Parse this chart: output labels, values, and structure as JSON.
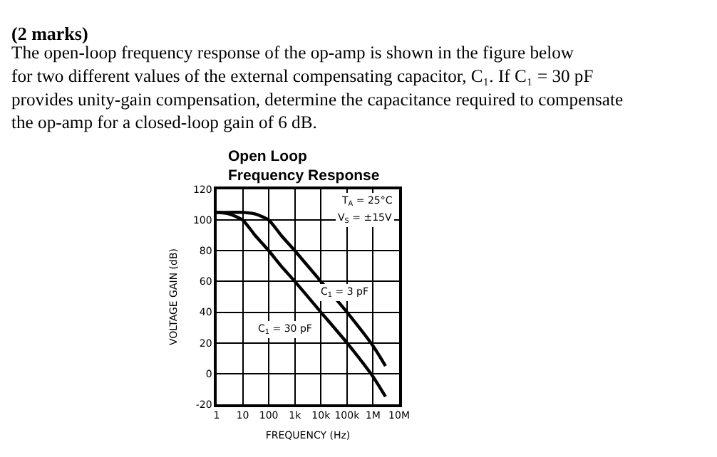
{
  "chart_data": {
    "type": "line",
    "title": "Open Loop\nFrequency Response",
    "xlabel": "FREQUENCY (Hz)",
    "ylabel": "VOLTAGE GAIN (dB)",
    "annotations": [
      "(2 marks)",
      "The open-loop frequency response of the op-amp is shown in the figure below\nfor two different values of the external compensating capacitor, C₁. If C₁ = 30 pF\nprovides unity-gain compensation, determine the capacitance required to compensate\nthe op-amp for a closed-loop gain of 6 dB.",
      "T$_{A}$ = 25°C",
      "V$_{S}$ = ±15V",
      "C$_{1}$ = 3 pF",
      "C$_{1}$ = 30 pF"
    ],
    "x": [
      1,
      3,
      10,
      30,
      100,
      300,
      1000,
      10000,
      100000,
      1000000,
      3000000
    ],
    "series": [
      {
        "color": "#000000",
        "values": [
          105,
          105,
          105,
          104,
          100,
          90,
          80,
          60,
          40,
          18,
          5
        ]
      },
      {
        "color": "#000000",
        "values": [
          105,
          104,
          100,
          90,
          80,
          70,
          60,
          40,
          20,
          -2,
          -15
        ]
      }
    ],
    "log": "x",
    "xlim": [
      1,
      10000000
    ],
    "ylim": [
      -20,
      120
    ],
    "xticks": [
      1,
      10,
      100,
      {
        "value": 1000,
        "label": "1k"
      },
      {
        "value": 10000,
        "label": "10k"
      },
      {
        "value": 100000,
        "label": "100k"
      },
      {
        "value": 1000000,
        "label": "1M"
      },
      {
        "value": 10000000,
        "label": "10M"
      }
    ],
    "yticks": [
      -20,
      0,
      20,
      40,
      60,
      80,
      100,
      120
    ],
    "grid": true,
    "marker": "none",
    "line_style": "solid"
  }
}
